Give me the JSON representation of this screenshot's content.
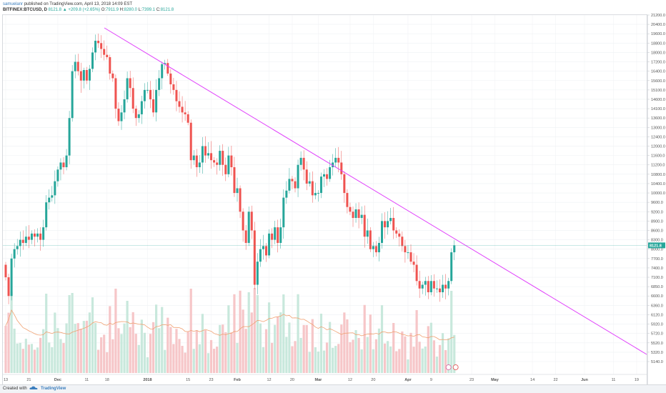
{
  "header": {
    "user": "samuelanr",
    "published_text": "published on TradingView.com, April 13, 2018 14:09 EST",
    "symbol": "BITFINEX:BTCUSD, D",
    "last": "8121.8",
    "change": "+209.8 (+2.65%)",
    "open_label": "O:",
    "open": "7911.9",
    "high_label": "H:",
    "high": "8280.0",
    "low_label": "L:",
    "low": "7399.1",
    "close_label": "C:",
    "close": "8121.8"
  },
  "footer": {
    "created_with": "Created with",
    "brand": "TradingView"
  },
  "colors": {
    "up": "#26a69a",
    "down": "#ef5350",
    "trendline": "#e040fb",
    "last_price_line": "#26a69a",
    "ma": "#f0a070"
  },
  "chart_data": {
    "type": "candlestick",
    "symbol": "BITFINEX:BTCUSD",
    "interval": "D",
    "y_ticks": [
      5140,
      5320,
      5520,
      5720,
      5920,
      6120,
      6360,
      6600,
      6850,
      7100,
      7400,
      7700,
      8000,
      8300,
      8600,
      8900,
      9200,
      9600,
      10000,
      10400,
      10800,
      11200,
      11600,
      12000,
      12400,
      13000,
      13600,
      14100,
      14600,
      15100,
      15600,
      16400,
      17200,
      18000,
      18800,
      19600,
      20400,
      21200
    ],
    "last_price": 8121.8,
    "x_ticks": [
      {
        "label": "13",
        "i": 0
      },
      {
        "label": "21",
        "i": 8
      },
      {
        "label": "Dec",
        "i": 18
      },
      {
        "label": "11",
        "i": 28
      },
      {
        "label": "18",
        "i": 35
      },
      {
        "label": "2018",
        "i": 49
      },
      {
        "label": "15",
        "i": 63
      },
      {
        "label": "23",
        "i": 71
      },
      {
        "label": "Feb",
        "i": 80
      },
      {
        "label": "12",
        "i": 91
      },
      {
        "label": "20",
        "i": 99
      },
      {
        "label": "Mar",
        "i": 108
      },
      {
        "label": "12",
        "i": 119
      },
      {
        "label": "20",
        "i": 127
      },
      {
        "label": "Apr",
        "i": 139
      },
      {
        "label": "9",
        "i": 147
      },
      {
        "label": "23",
        "i": 161
      },
      {
        "label": "May",
        "i": 169
      },
      {
        "label": "14",
        "i": 182
      },
      {
        "label": "22",
        "i": 190
      },
      {
        "label": "Jun",
        "i": 200
      },
      {
        "label": "11",
        "i": 210
      },
      {
        "label": "19",
        "i": 218
      }
    ],
    "candles_start": "2017-11-13",
    "closes": [
      7100,
      6600,
      7700,
      8000,
      8100,
      8300,
      8200,
      8400,
      8300,
      8500,
      8400,
      8500,
      8300,
      8700,
      9600,
      9800,
      9900,
      10500,
      11000,
      11300,
      11100,
      11600,
      13600,
      16400,
      17200,
      16400,
      15600,
      16500,
      15600,
      16600,
      18000,
      19000,
      18800,
      18300,
      17800,
      17600,
      16200,
      15800,
      14100,
      13400,
      13900,
      14600,
      15800,
      15200,
      14100,
      13600,
      13800,
      14500,
      15100,
      15100,
      14600,
      13900,
      15100,
      15800,
      17000,
      17100,
      16200,
      15400,
      15100,
      14500,
      14200,
      13900,
      13800,
      13300,
      11400,
      11600,
      11100,
      11300,
      12000,
      11600,
      11700,
      11400,
      11300,
      11200,
      11800,
      11200,
      10800,
      11600,
      11100,
      10000,
      10200,
      9200,
      8600,
      8200,
      9200,
      8600,
      6900,
      7600,
      8000,
      8100,
      7800,
      8500,
      8300,
      8700,
      8200,
      8700,
      9800,
      10100,
      10600,
      10500,
      10200,
      11200,
      11500,
      11000,
      10400,
      10500,
      9900,
      10000,
      10000,
      10700,
      10800,
      10600,
      11100,
      11300,
      11500,
      11300,
      10800,
      10000,
      9400,
      9200,
      9000,
      9300,
      9000,
      9100,
      8400,
      8600,
      8000,
      8100,
      7900,
      8200,
      8900,
      8700,
      8900,
      9000,
      8600,
      8500,
      8400,
      8100,
      7900,
      7900,
      7600,
      7500,
      7000,
      6800,
      6900,
      7000,
      6700,
      7000,
      6800,
      6800,
      6700,
      6900,
      6800,
      7000,
      7900,
      8121.8
    ]
  }
}
